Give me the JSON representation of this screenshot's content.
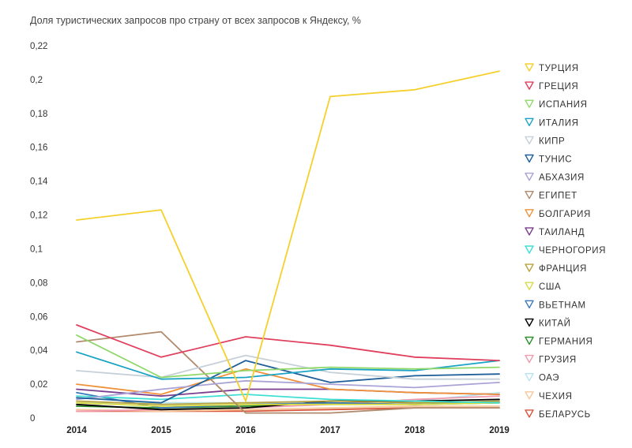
{
  "title": "Доля туристических запросов про страну от всех запросов к Яндексу, %",
  "chart_data": {
    "type": "line",
    "title": "Доля туристических запросов про страну от всех запросов к Яндексу, %",
    "xlabel": "",
    "ylabel": "",
    "x": [
      "2014",
      "2015",
      "2016",
      "2017",
      "2018",
      "2019"
    ],
    "ylim": [
      0,
      0.22
    ],
    "y_ticks": [
      "0",
      "0,02",
      "0,04",
      "0,06",
      "0,08",
      "0,1",
      "0,12",
      "0,14",
      "0,16",
      "0,18",
      "0,2",
      "0,22"
    ],
    "grid": false,
    "legend_position": "right",
    "series": [
      {
        "name": "ТУРЦИЯ",
        "color": "#f5d02c",
        "values": [
          0.117,
          0.123,
          0.01,
          0.19,
          0.194,
          0.205
        ]
      },
      {
        "name": "ГРЕЦИЯ",
        "color": "#e0405e",
        "values": [
          0.055,
          0.036,
          0.048,
          0.043,
          0.036,
          0.034
        ]
      },
      {
        "name": "ИСПАНИЯ",
        "color": "#8fd86a",
        "values": [
          0.049,
          0.024,
          0.028,
          0.03,
          0.029,
          0.03
        ]
      },
      {
        "name": "ИТАЛИЯ",
        "color": "#1aa3c4",
        "values": [
          0.039,
          0.023,
          0.024,
          0.029,
          0.028,
          0.034
        ]
      },
      {
        "name": "КИПР",
        "color": "#c6d0d8",
        "values": [
          0.028,
          0.024,
          0.037,
          0.027,
          0.023,
          0.023
        ]
      },
      {
        "name": "ТУНИС",
        "color": "#1f5f9a",
        "values": [
          0.012,
          0.009,
          0.034,
          0.021,
          0.025,
          0.026
        ]
      },
      {
        "name": "АБХАЗИЯ",
        "color": "#a9a3d6",
        "values": [
          0.011,
          0.017,
          0.022,
          0.02,
          0.018,
          0.021
        ]
      },
      {
        "name": "ЕГИПЕТ",
        "color": "#b08a6c",
        "values": [
          0.045,
          0.051,
          0.003,
          0.003,
          0.006,
          0.006
        ]
      },
      {
        "name": "БОЛГАРИЯ",
        "color": "#f0923a",
        "values": [
          0.02,
          0.014,
          0.029,
          0.017,
          0.015,
          0.014
        ]
      },
      {
        "name": "ТАИЛАНД",
        "color": "#7a3e8f",
        "values": [
          0.017,
          0.013,
          0.017,
          0.017,
          0.015,
          0.014
        ]
      },
      {
        "name": "ЧЕРНОГОРИЯ",
        "color": "#3ee0d4",
        "values": [
          0.013,
          0.011,
          0.014,
          0.011,
          0.01,
          0.009
        ]
      },
      {
        "name": "ФРАНЦИЯ",
        "color": "#b9a33e",
        "values": [
          0.01,
          0.008,
          0.009,
          0.01,
          0.009,
          0.01
        ]
      },
      {
        "name": "США",
        "color": "#d7dc45",
        "values": [
          0.009,
          0.007,
          0.008,
          0.008,
          0.008,
          0.009
        ]
      },
      {
        "name": "ВЬЕТНАМ",
        "color": "#3a78b8",
        "values": [
          0.015,
          0.006,
          0.008,
          0.009,
          0.008,
          0.01
        ]
      },
      {
        "name": "КИТАЙ",
        "color": "#000000",
        "values": [
          0.008,
          0.005,
          0.006,
          0.01,
          0.01,
          0.011
        ]
      },
      {
        "name": "ГЕРМАНИЯ",
        "color": "#2f8f2f",
        "values": [
          0.007,
          0.006,
          0.007,
          0.009,
          0.008,
          0.009
        ]
      },
      {
        "name": "ГРУЗИЯ",
        "color": "#f19bb0",
        "values": [
          0.004,
          0.005,
          0.006,
          0.008,
          0.011,
          0.013
        ]
      },
      {
        "name": "ОАЭ",
        "color": "#b9e4ef",
        "values": [
          0.009,
          0.009,
          0.009,
          0.01,
          0.01,
          0.015
        ]
      },
      {
        "name": "ЧЕХИЯ",
        "color": "#f6c89a",
        "values": [
          0.005,
          0.004,
          0.005,
          0.006,
          0.007,
          0.007
        ]
      },
      {
        "name": "БЕЛАРУСЬ",
        "color": "#d9553b",
        "values": [
          0.004,
          0.004,
          0.004,
          0.005,
          0.006,
          0.006
        ]
      }
    ]
  }
}
